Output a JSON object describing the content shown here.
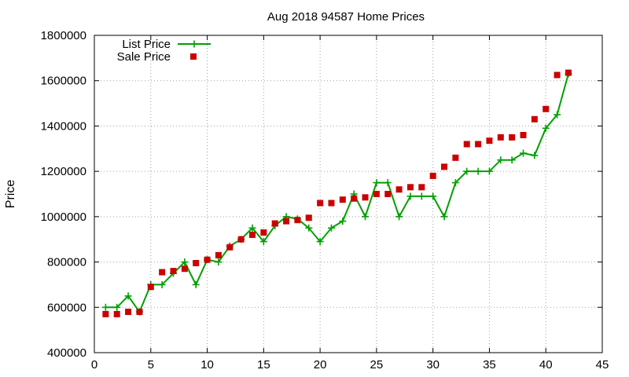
{
  "chart_data": {
    "type": "line",
    "title": "Aug 2018 94587 Home Prices",
    "xlabel": "",
    "ylabel": "Price",
    "xlim": [
      0,
      45
    ],
    "ylim": [
      400000,
      1800000
    ],
    "x_ticks": [
      0,
      5,
      10,
      15,
      20,
      25,
      30,
      35,
      40,
      45
    ],
    "y_ticks": [
      400000,
      600000,
      800000,
      1000000,
      1200000,
      1400000,
      1600000,
      1800000
    ],
    "grid": true,
    "grid_style": "dotted",
    "legend_position": "top-left",
    "x": [
      1,
      2,
      3,
      4,
      5,
      6,
      7,
      8,
      9,
      10,
      11,
      12,
      13,
      14,
      15,
      16,
      17,
      18,
      19,
      20,
      21,
      22,
      23,
      24,
      25,
      26,
      27,
      28,
      29,
      30,
      31,
      32,
      33,
      34,
      35,
      36,
      37,
      38,
      39,
      40,
      41,
      42
    ],
    "series": [
      {
        "name": "List Price",
        "style": "line-points",
        "marker": "plus",
        "color": "#00a000",
        "values": [
          600000,
          600000,
          650000,
          580000,
          700000,
          700000,
          750000,
          800000,
          700000,
          810000,
          800000,
          870000,
          900000,
          950000,
          890000,
          960000,
          1000000,
          990000,
          950000,
          890000,
          950000,
          980000,
          1100000,
          1000000,
          1150000,
          1150000,
          1000000,
          1090000,
          1090000,
          1090000,
          1000000,
          1150000,
          1200000,
          1200000,
          1200000,
          1250000,
          1250000,
          1280000,
          1270000,
          1390000,
          1450000,
          1630000
        ]
      },
      {
        "name": "Sale Price",
        "style": "points",
        "marker": "square",
        "color": "#cc0000",
        "values": [
          570000,
          570000,
          580000,
          580000,
          690000,
          755000,
          760000,
          770000,
          795000,
          810000,
          830000,
          865000,
          900000,
          920000,
          930000,
          970000,
          980000,
          985000,
          995000,
          1060000,
          1060000,
          1075000,
          1080000,
          1085000,
          1100000,
          1100000,
          1120000,
          1130000,
          1130000,
          1180000,
          1220000,
          1260000,
          1320000,
          1320000,
          1335000,
          1350000,
          1350000,
          1360000,
          1430000,
          1475000,
          1625000,
          1635000
        ]
      }
    ]
  }
}
